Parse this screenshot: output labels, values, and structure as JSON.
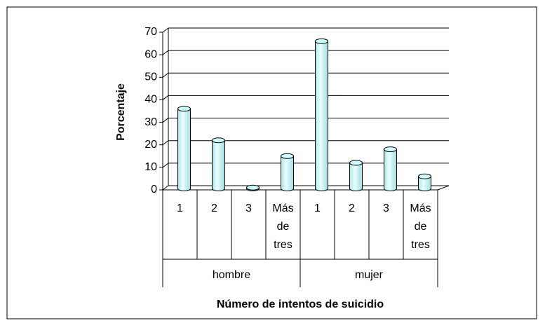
{
  "chart_data": {
    "type": "bar",
    "xlabel": "Número de intentos de suicidio",
    "ylabel": "Porcentaje",
    "categories": [
      "1",
      "2",
      "3",
      "Más de tres",
      "1",
      "2",
      "3",
      "Más de tres"
    ],
    "groups": [
      "hombre",
      "mujer"
    ],
    "values": [
      36,
      22,
      1,
      15,
      66,
      12,
      18,
      6
    ],
    "color": "#ccffff",
    "ylim": [
      0,
      70
    ],
    "yticks": [
      0,
      10,
      20,
      30,
      40,
      50,
      60,
      70
    ],
    "grid": true
  }
}
